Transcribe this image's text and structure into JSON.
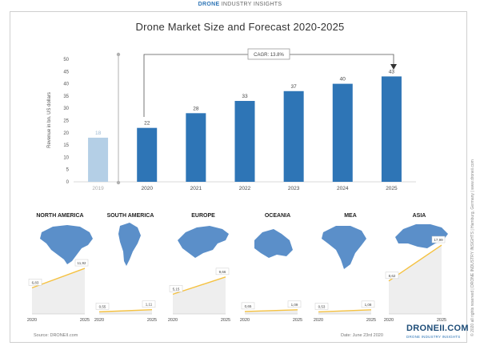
{
  "header": {
    "brand_prefix": "DRONE",
    "brand_suffix": "INDUSTRY INSIGHTS",
    "side_note": "© 2020 all rights reserved | DRONE INDUSTRY INSIGHTS | Hamburg, Germany | www.droneii.com"
  },
  "chart_data": [
    {
      "type": "bar",
      "title": "Drone Market Size and Forecast 2020-2025",
      "ylabel": "Revenue in bn. US dollars",
      "ylim": [
        0,
        50
      ],
      "yticks": [
        "0",
        "5",
        "10",
        "15",
        "20",
        "25",
        "30",
        "35",
        "40",
        "45",
        "50"
      ],
      "categories": [
        "2019",
        "2020",
        "2021",
        "2022",
        "2023",
        "2024",
        "2025"
      ],
      "values": [
        18,
        22,
        28,
        33,
        37,
        40,
        43
      ],
      "data_labels": [
        "18",
        "22",
        "28",
        "33",
        "37",
        "40",
        "43"
      ],
      "annotation": "CAGR: 13.8%",
      "colors": {
        "historic": "#b4cfe6",
        "forecast": "#2e75b6"
      }
    },
    {
      "type": "area",
      "region": "NORTH AMERICA",
      "x": [
        "2020",
        "2025"
      ],
      "values": [
        6.83,
        11.92
      ],
      "labels": [
        "6,83",
        "11,92"
      ]
    },
    {
      "type": "area",
      "region": "SOUTH AMERICA",
      "x": [
        "2020",
        "2025"
      ],
      "values": [
        0.55,
        1.11
      ],
      "labels": [
        "0,55",
        "1,11"
      ]
    },
    {
      "type": "area",
      "region": "EUROPE",
      "x": [
        "2020",
        "2025"
      ],
      "values": [
        5.15,
        9.66
      ],
      "labels": [
        "5,15",
        "9,66"
      ]
    },
    {
      "type": "area",
      "region": "OCEANIA",
      "x": [
        "2020",
        "2025"
      ],
      "values": [
        0.65,
        1.09
      ],
      "labels": [
        "0,65",
        "1,09"
      ]
    },
    {
      "type": "area",
      "region": "MEA",
      "x": [
        "2020",
        "2025"
      ],
      "values": [
        0.53,
        1.08
      ],
      "labels": [
        "0,53",
        "1,08"
      ]
    },
    {
      "type": "area",
      "region": "ASIA",
      "x": [
        "2020",
        "2025"
      ],
      "values": [
        8.62,
        17.99
      ],
      "labels": [
        "8,62",
        "17,99"
      ]
    }
  ],
  "regions_scale_max": 18,
  "colors": {
    "line": "#f5c242",
    "area": "#eeeeee",
    "map": "#5b8fc9"
  },
  "footer": {
    "source": "Source: DRONEII.com",
    "date": "Date: June 23rd 2020",
    "logo": "DRONEII.COM",
    "logo_sub": "DRONE INDUSTRY INSIGHTS"
  }
}
